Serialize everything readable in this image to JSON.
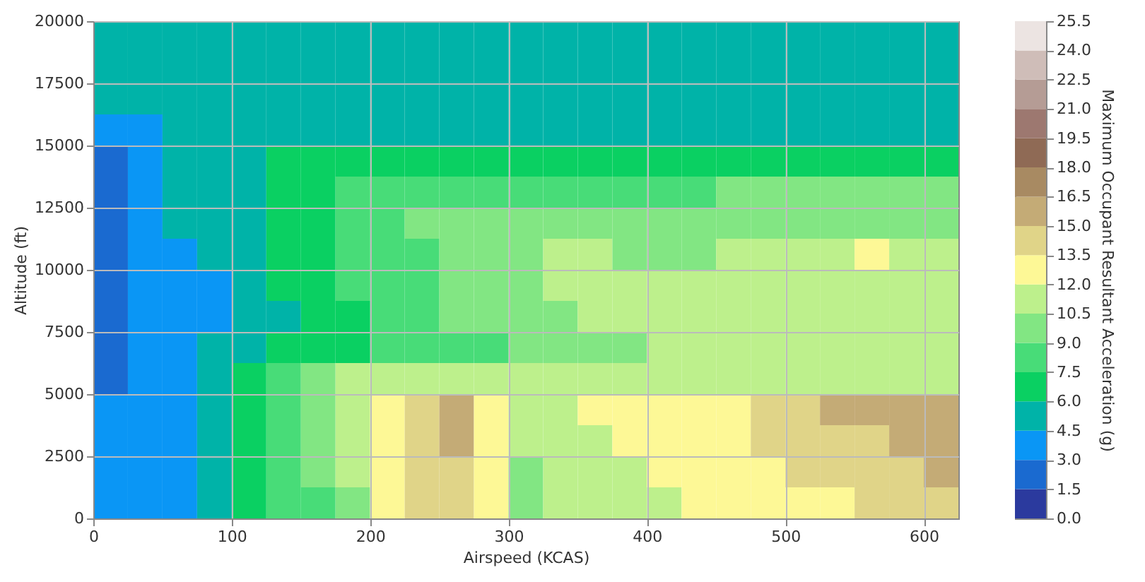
{
  "chart_data": {
    "type": "heatmap",
    "xlabel": "Airspeed (KCAS)",
    "ylabel": "Altitude (ft)",
    "clabel": "Maximum Occupant Resultant Acceleration (g)",
    "x": [
      12.5,
      37.5,
      62.5,
      87.5,
      112.5,
      137.5,
      162.5,
      187.5,
      212.5,
      237.5,
      262.5,
      287.5,
      312.5,
      337.5,
      362.5,
      387.5,
      412.5,
      437.5,
      462.5,
      487.5,
      512.5,
      537.5,
      562.5,
      587.5,
      612.5
    ],
    "y": [
      19375,
      18125,
      16875,
      15625,
      14375,
      13125,
      11875,
      10625,
      9375,
      8125,
      6875,
      5625,
      4375,
      3125,
      1875,
      625
    ],
    "xlim": [
      0,
      625
    ],
    "xticks": [
      0,
      100,
      200,
      300,
      400,
      500,
      600
    ],
    "ylim": [
      0,
      20000
    ],
    "yticks": [
      0,
      2500,
      5000,
      7500,
      10000,
      12500,
      15000,
      17500,
      20000
    ],
    "clim": [
      0,
      25.5
    ],
    "cticks": [
      {
        "value": 0,
        "label": "0.0"
      },
      1.5,
      {
        "value": 3,
        "label": "3.0"
      },
      4.5,
      {
        "value": 6,
        "label": "6.0"
      },
      7.5,
      {
        "value": 9,
        "label": "9.0"
      },
      10.5,
      {
        "value": 12,
        "label": "12.0"
      },
      13.5,
      {
        "value": 15,
        "label": "15.0"
      },
      16.5,
      {
        "value": 18,
        "label": "18.0"
      },
      19.5,
      {
        "value": 21,
        "label": "21.0"
      },
      22.5,
      {
        "value": 24,
        "label": "24.0"
      },
      25.5
    ],
    "colors": [
      "#2b3a9e",
      "#1a6ad0",
      "#0a96f5",
      "#00b3a8",
      "#0ad062",
      "#48dc78",
      "#82e683",
      "#bdf08c",
      "#fdf896",
      "#e0d488",
      "#c4ab76",
      "#a88a62",
      "#8f6a55",
      "#9d7870",
      "#b59c95",
      "#cfbdb8",
      "#ece4e2"
    ],
    "grid": true,
    "cells": [
      [
        5.25,
        5.25,
        5.25,
        5.25,
        5.25,
        5.25,
        5.25,
        5.25,
        5.25,
        5.25,
        5.25,
        5.25,
        5.25,
        5.25,
        5.25,
        5.25,
        5.25,
        5.25,
        5.25,
        5.25,
        5.25,
        5.25,
        5.25,
        5.25,
        5.25
      ],
      [
        5.25,
        5.25,
        5.25,
        5.25,
        5.25,
        5.25,
        5.25,
        5.25,
        5.25,
        5.25,
        5.25,
        5.25,
        5.25,
        5.25,
        5.25,
        5.25,
        5.25,
        5.25,
        5.25,
        5.25,
        5.25,
        5.25,
        5.25,
        5.25,
        5.25
      ],
      [
        5.25,
        5.25,
        5.25,
        5.25,
        5.25,
        5.25,
        5.25,
        5.25,
        5.25,
        5.25,
        5.25,
        5.25,
        5.25,
        5.25,
        5.25,
        5.25,
        5.25,
        5.25,
        5.25,
        5.25,
        5.25,
        5.25,
        5.25,
        5.25,
        5.25
      ],
      [
        3.75,
        3.75,
        5.25,
        5.25,
        5.25,
        5.25,
        5.25,
        5.25,
        5.25,
        5.25,
        5.25,
        5.25,
        5.25,
        5.25,
        5.25,
        5.25,
        5.25,
        5.25,
        5.25,
        5.25,
        5.25,
        5.25,
        5.25,
        5.25,
        5.25
      ],
      [
        2.25,
        3.75,
        5.25,
        5.25,
        5.25,
        6.75,
        6.75,
        6.75,
        6.75,
        6.75,
        6.75,
        6.75,
        6.75,
        6.75,
        6.75,
        6.75,
        6.75,
        6.75,
        6.75,
        6.75,
        6.75,
        6.75,
        6.75,
        6.75,
        6.75
      ],
      [
        2.25,
        3.75,
        5.25,
        5.25,
        5.25,
        6.75,
        6.75,
        8.25,
        8.25,
        8.25,
        8.25,
        8.25,
        8.25,
        8.25,
        8.25,
        8.25,
        8.25,
        8.25,
        9.75,
        9.75,
        9.75,
        9.75,
        9.75,
        9.75,
        9.75
      ],
      [
        2.25,
        3.75,
        5.25,
        5.25,
        5.25,
        6.75,
        6.75,
        8.25,
        8.25,
        9.75,
        9.75,
        9.75,
        9.75,
        9.75,
        9.75,
        9.75,
        9.75,
        9.75,
        9.75,
        9.75,
        9.75,
        9.75,
        9.75,
        9.75,
        9.75
      ],
      [
        2.25,
        3.75,
        3.75,
        5.25,
        5.25,
        6.75,
        6.75,
        8.25,
        8.25,
        8.25,
        9.75,
        9.75,
        9.75,
        11.25,
        11.25,
        9.75,
        9.75,
        9.75,
        11.25,
        11.25,
        11.25,
        11.25,
        12.75,
        11.25,
        11.25
      ],
      [
        2.25,
        3.75,
        3.75,
        3.75,
        5.25,
        6.75,
        6.75,
        8.25,
        8.25,
        8.25,
        9.75,
        9.75,
        9.75,
        11.25,
        11.25,
        11.25,
        11.25,
        11.25,
        11.25,
        11.25,
        11.25,
        11.25,
        11.25,
        11.25,
        11.25
      ],
      [
        2.25,
        3.75,
        3.75,
        3.75,
        5.25,
        5.25,
        6.75,
        6.75,
        8.25,
        8.25,
        9.75,
        9.75,
        9.75,
        9.75,
        11.25,
        11.25,
        11.25,
        11.25,
        11.25,
        11.25,
        11.25,
        11.25,
        11.25,
        11.25,
        11.25
      ],
      [
        2.25,
        3.75,
        3.75,
        5.25,
        5.25,
        6.75,
        6.75,
        6.75,
        8.25,
        8.25,
        8.25,
        8.25,
        9.75,
        9.75,
        9.75,
        9.75,
        11.25,
        11.25,
        11.25,
        11.25,
        11.25,
        11.25,
        11.25,
        11.25,
        11.25
      ],
      [
        2.25,
        3.75,
        3.75,
        5.25,
        6.75,
        8.25,
        9.75,
        11.25,
        11.25,
        11.25,
        11.25,
        11.25,
        11.25,
        11.25,
        11.25,
        11.25,
        11.25,
        11.25,
        11.25,
        11.25,
        11.25,
        11.25,
        11.25,
        11.25,
        11.25
      ],
      [
        3.75,
        3.75,
        3.75,
        5.25,
        6.75,
        8.25,
        9.75,
        11.25,
        12.75,
        14.25,
        15.75,
        12.75,
        11.25,
        11.25,
        12.75,
        12.75,
        12.75,
        12.75,
        12.75,
        14.25,
        14.25,
        15.75,
        15.75,
        15.75,
        15.75
      ],
      [
        3.75,
        3.75,
        3.75,
        5.25,
        6.75,
        8.25,
        9.75,
        11.25,
        12.75,
        14.25,
        15.75,
        12.75,
        11.25,
        11.25,
        11.25,
        12.75,
        12.75,
        12.75,
        12.75,
        14.25,
        14.25,
        14.25,
        14.25,
        15.75,
        15.75
      ],
      [
        3.75,
        3.75,
        3.75,
        5.25,
        6.75,
        8.25,
        9.75,
        11.25,
        12.75,
        14.25,
        14.25,
        12.75,
        9.75,
        11.25,
        11.25,
        11.25,
        12.75,
        12.75,
        12.75,
        12.75,
        14.25,
        14.25,
        14.25,
        14.25,
        15.75
      ],
      [
        3.75,
        3.75,
        3.75,
        5.25,
        6.75,
        8.25,
        8.25,
        9.75,
        12.75,
        14.25,
        14.25,
        12.75,
        9.75,
        11.25,
        11.25,
        11.25,
        11.25,
        12.75,
        12.75,
        12.75,
        12.75,
        12.75,
        14.25,
        14.25,
        14.25
      ]
    ]
  }
}
